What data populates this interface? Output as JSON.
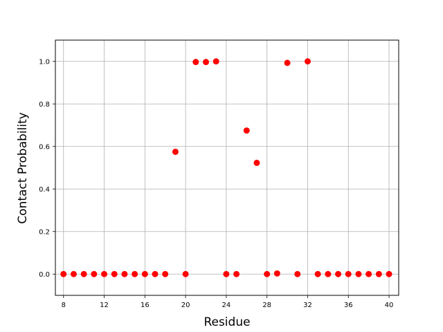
{
  "chart_data": {
    "type": "scatter",
    "title": "",
    "xlabel": "Residue",
    "ylabel": "Contact Probability",
    "xlim": [
      7.2,
      40.95
    ],
    "ylim": [
      -0.1,
      1.1
    ],
    "xticks": [
      8,
      12,
      16,
      20,
      24,
      28,
      32,
      36,
      40
    ],
    "yticks": [
      0.0,
      0.2,
      0.4,
      0.6,
      0.8,
      1.0
    ],
    "ytick_labels": [
      "0.0",
      "0.2",
      "0.4",
      "0.6",
      "0.8",
      "1.0"
    ],
    "grid": true,
    "marker_color": "#ff0000",
    "series": [
      {
        "x": [
          8,
          9,
          10,
          11,
          12,
          13,
          14,
          15,
          16,
          17,
          18,
          19,
          20,
          21,
          22,
          23,
          24,
          25,
          26,
          27,
          28,
          29,
          30,
          31,
          32,
          33,
          34,
          35,
          36,
          37,
          38,
          39,
          40
        ],
        "y": [
          0.0,
          0.0,
          0.0,
          0.0,
          0.0,
          0.0,
          0.0,
          0.0,
          0.0,
          0.0,
          0.0,
          0.575,
          0.0,
          0.997,
          0.997,
          1.0,
          0.0,
          0.0,
          0.675,
          0.523,
          0.0,
          0.003,
          0.993,
          0.0,
          1.0,
          0.0,
          0.0,
          0.0,
          0.0,
          0.0,
          0.0,
          0.0,
          0.0
        ]
      }
    ]
  }
}
